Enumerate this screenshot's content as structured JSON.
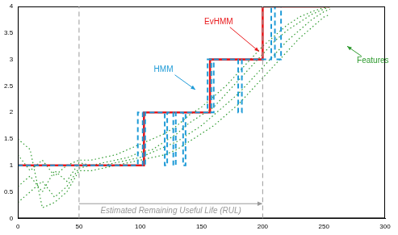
{
  "chart_data": {
    "type": "line",
    "xlim": [
      0,
      300
    ],
    "xticks": [
      0,
      50,
      100,
      150,
      200,
      250,
      300
    ],
    "ylim": [
      0,
      4
    ],
    "yticks": [
      0,
      0.5,
      1,
      1.5,
      2,
      2.5,
      3,
      3.5,
      4
    ],
    "grid": false,
    "series": [
      {
        "name": "Features",
        "color": "#2e9a2e",
        "line_style": "dotted",
        "x": [
          0,
          10,
          20,
          30,
          40,
          50,
          60,
          70,
          80,
          90,
          100,
          110,
          120,
          130,
          140,
          150,
          160,
          170,
          180,
          190,
          200,
          210,
          220,
          230,
          240,
          250,
          255,
          255,
          0,
          10,
          20,
          30,
          40,
          50,
          60,
          70,
          80,
          90,
          100,
          110,
          120,
          130,
          140,
          150,
          160,
          170,
          180,
          190,
          200,
          210,
          220,
          230,
          240,
          250,
          255,
          255,
          0,
          10,
          20,
          30,
          40,
          50,
          60,
          70,
          80,
          90,
          100,
          110,
          120,
          130,
          140,
          150,
          160,
          170,
          180,
          190,
          200,
          210,
          220,
          230,
          240,
          250,
          255,
          255,
          0,
          10,
          20,
          30,
          40,
          50,
          60,
          70,
          80,
          90,
          100,
          110,
          120,
          130,
          140,
          150,
          160,
          170,
          180,
          190,
          200,
          210,
          220,
          230,
          240,
          250,
          255
        ],
        "values": [
          1.2,
          0.9,
          1.1,
          0.8,
          1.0,
          1.1,
          1.1,
          1.15,
          1.2,
          1.3,
          1.4,
          1.5,
          1.6,
          1.75,
          1.95,
          2.1,
          2.3,
          2.5,
          2.75,
          3.0,
          3.25,
          3.45,
          3.65,
          3.8,
          3.9,
          3.98,
          4.0,
          null,
          0.6,
          0.8,
          0.5,
          0.9,
          0.7,
          1.05,
          1.0,
          1.05,
          1.1,
          1.15,
          1.25,
          1.3,
          1.45,
          1.6,
          1.8,
          1.95,
          2.1,
          2.35,
          2.6,
          2.85,
          3.1,
          3.35,
          3.55,
          3.7,
          3.85,
          3.95,
          4.0,
          null,
          0.3,
          0.5,
          0.7,
          0.4,
          0.6,
          0.95,
          1.0,
          1.0,
          1.05,
          1.1,
          1.15,
          1.25,
          1.35,
          1.45,
          1.6,
          1.75,
          1.95,
          2.15,
          2.35,
          2.6,
          2.85,
          3.1,
          3.35,
          3.55,
          3.75,
          3.9,
          3.95,
          null,
          1.5,
          1.3,
          0.2,
          0.3,
          0.5,
          0.9,
          0.9,
          0.95,
          1.0,
          1.05,
          1.1,
          1.15,
          1.2,
          1.3,
          1.45,
          1.6,
          1.75,
          1.95,
          2.15,
          2.4,
          2.65,
          2.9,
          3.15,
          3.4,
          3.6,
          3.8,
          3.85
        ]
      },
      {
        "name": "EvHMM",
        "color": "#e8191c",
        "line_style": "solid",
        "x": [
          0,
          103,
          103,
          157,
          157,
          200,
          200,
          255
        ],
        "values": [
          1,
          1,
          2,
          2,
          3,
          3,
          4,
          4
        ]
      },
      {
        "name": "HMM",
        "color": "#1f9bd7",
        "line_style": "dashed",
        "x": [
          0,
          98,
          98,
          102,
          102,
          104,
          104,
          120,
          120,
          122,
          122,
          127,
          127,
          129,
          129,
          135,
          135,
          137,
          137,
          155,
          155,
          158,
          158,
          160,
          160,
          180,
          180,
          183,
          183,
          207,
          207,
          210,
          210,
          215,
          215,
          255
        ],
        "values": [
          1,
          1,
          2,
          2,
          1,
          1,
          2,
          2,
          1,
          1,
          2,
          2,
          1,
          1,
          2,
          2,
          1,
          1,
          2,
          2,
          3,
          3,
          2,
          2,
          3,
          3,
          2,
          2,
          3,
          3,
          4,
          4,
          3,
          3,
          4,
          4
        ]
      }
    ],
    "annotations": [
      {
        "text": "EvHMM",
        "color": "#e8191c",
        "x": 164,
        "y": 3.7,
        "arrow_to": [
          197,
          3.15
        ]
      },
      {
        "text": "HMM",
        "color": "#1f9bd7",
        "x": 119,
        "y": 2.8,
        "arrow_to": [
          145,
          2.43
        ]
      },
      {
        "text": "Features",
        "color": "#2e9a2e",
        "x": 290,
        "y": 2.97,
        "arrow_to": [
          269,
          3.25
        ]
      },
      {
        "text": "Estimated Remaining Useful Life (RUL)",
        "color": "#999999",
        "x": 125,
        "y": 0.14,
        "span": [
          50,
          200
        ]
      }
    ],
    "vlines": [
      50,
      200
    ]
  }
}
